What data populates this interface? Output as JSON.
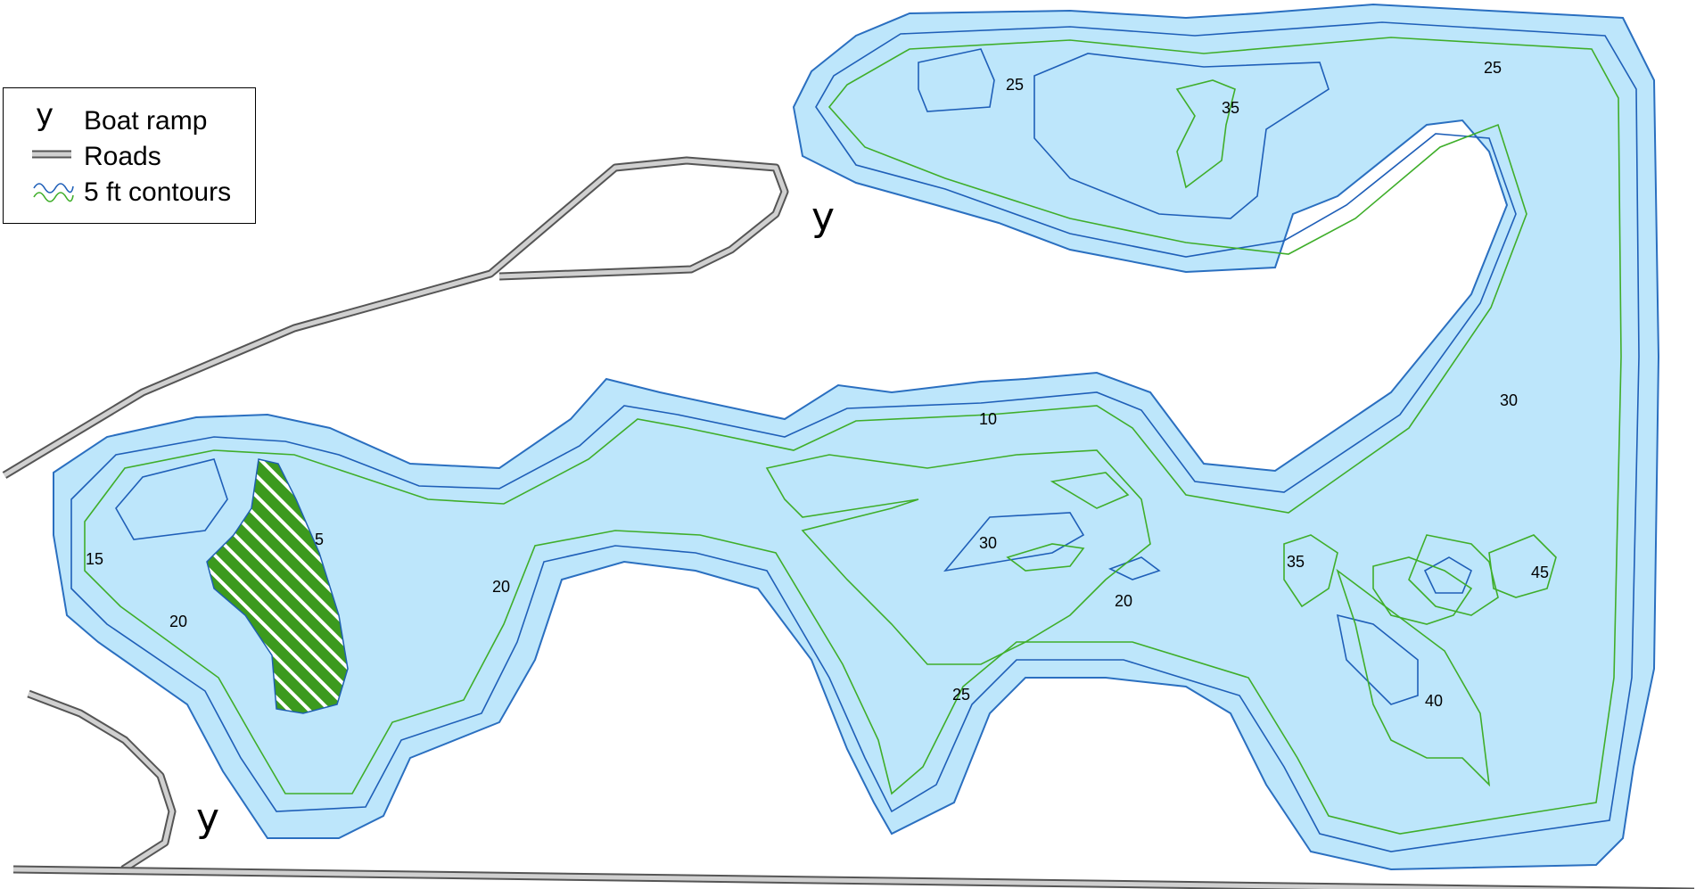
{
  "legend": {
    "items": [
      {
        "symbol": "boat-ramp",
        "glyph": "y",
        "label": "Boat ramp"
      },
      {
        "symbol": "roads",
        "label": "Roads"
      },
      {
        "symbol": "contours",
        "label": "5 ft contours"
      }
    ]
  },
  "colors": {
    "water": "#bde6fb",
    "shore": "#2a6fc0",
    "contour_blue": "#1f5fb8",
    "contour_green": "#3fae2a",
    "island": "#3c9a1e",
    "road_fill": "#d0d0d0",
    "road_edge": "#555555"
  },
  "ramp_glyph": "y",
  "depth_labels": [
    "25",
    "35",
    "25",
    "10",
    "30",
    "15",
    "5",
    "20",
    "20",
    "30",
    "35",
    "45",
    "20",
    "25",
    "40"
  ]
}
